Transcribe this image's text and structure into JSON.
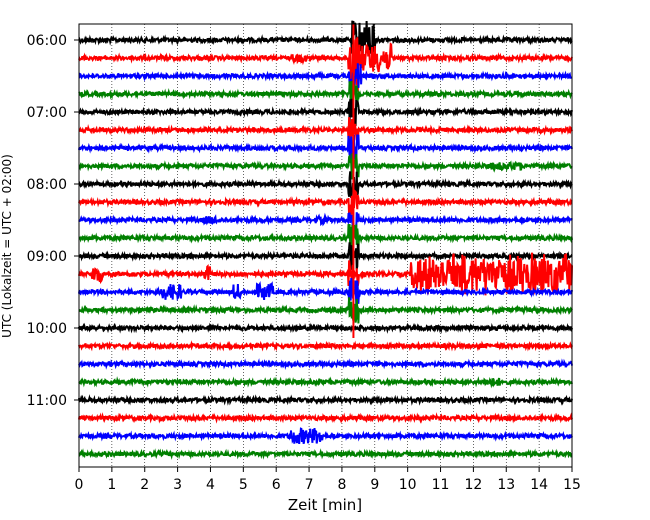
{
  "chart_data": {
    "type": "line",
    "title": "",
    "xlabel": "Zeit  [min]",
    "ylabel": "UTC (Lokalzeit = UTC + 02:00)",
    "xlim": [
      0,
      15
    ],
    "x_ticks": [
      "0",
      "1",
      "2",
      "3",
      "4",
      "5",
      "6",
      "7",
      "8",
      "9",
      "10",
      "11",
      "12",
      "13",
      "14",
      "15"
    ],
    "y_ticks": [
      "06:00",
      "07:00",
      "08:00",
      "09:00",
      "10:00",
      "11:00"
    ],
    "trace_interval_minutes": 15,
    "trace_start": "06:00",
    "trace_count": 24,
    "trace_colors": [
      "#000000",
      "#ff0000",
      "#0000ff",
      "#008000"
    ],
    "grid": "vertical-dotted",
    "events": [
      {
        "trace": 0,
        "start": 8.3,
        "end": 9.0,
        "amplitude": "high"
      },
      {
        "trace": 1,
        "start": 8.2,
        "end": 9.5,
        "amplitude": "high"
      },
      {
        "trace": 2,
        "start": 8.2,
        "end": 8.6,
        "amplitude": "high"
      },
      {
        "trace": 3,
        "start": 8.2,
        "end": 8.5,
        "amplitude": "high"
      },
      {
        "trace": 4,
        "start": 8.2,
        "end": 8.5,
        "amplitude": "high"
      },
      {
        "trace": 5,
        "start": 8.2,
        "end": 8.5,
        "amplitude": "high"
      },
      {
        "trace": 6,
        "start": 8.2,
        "end": 8.5,
        "amplitude": "high"
      },
      {
        "trace": 7,
        "start": 8.2,
        "end": 8.5,
        "amplitude": "high"
      },
      {
        "trace": 8,
        "start": 8.2,
        "end": 8.5,
        "amplitude": "high"
      },
      {
        "trace": 9,
        "start": 8.2,
        "end": 8.5,
        "amplitude": "high"
      },
      {
        "trace": 10,
        "start": 8.2,
        "end": 8.5,
        "amplitude": "high"
      },
      {
        "trace": 11,
        "start": 8.2,
        "end": 8.5,
        "amplitude": "high"
      },
      {
        "trace": 12,
        "start": 8.2,
        "end": 8.5,
        "amplitude": "high"
      },
      {
        "trace": 13,
        "start": 8.2,
        "end": 8.5,
        "amplitude": "high"
      },
      {
        "trace": 14,
        "start": 8.2,
        "end": 8.5,
        "amplitude": "high"
      },
      {
        "trace": 15,
        "start": 8.2,
        "end": 8.5,
        "amplitude": "high"
      },
      {
        "trace": 13,
        "start": 10.1,
        "end": 15.0,
        "amplitude": "high"
      },
      {
        "trace": 13,
        "start": 0.4,
        "end": 0.7,
        "amplitude": "medium"
      },
      {
        "trace": 13,
        "start": 3.8,
        "end": 4.0,
        "amplitude": "medium"
      },
      {
        "trace": 14,
        "start": 2.5,
        "end": 3.1,
        "amplitude": "medium"
      },
      {
        "trace": 14,
        "start": 4.7,
        "end": 4.9,
        "amplitude": "medium"
      },
      {
        "trace": 14,
        "start": 5.4,
        "end": 5.9,
        "amplitude": "medium"
      },
      {
        "trace": 10,
        "start": 3.8,
        "end": 4.2,
        "amplitude": "low"
      },
      {
        "trace": 10,
        "start": 7.2,
        "end": 7.6,
        "amplitude": "low"
      },
      {
        "trace": 22,
        "start": 6.4,
        "end": 7.4,
        "amplitude": "medium"
      },
      {
        "trace": 7,
        "start": 12.5,
        "end": 13.5,
        "amplitude": "low"
      },
      {
        "trace": 1,
        "start": 6.5,
        "end": 6.9,
        "amplitude": "low"
      },
      {
        "trace": 19,
        "start": 12.3,
        "end": 12.8,
        "amplitude": "low"
      }
    ]
  }
}
